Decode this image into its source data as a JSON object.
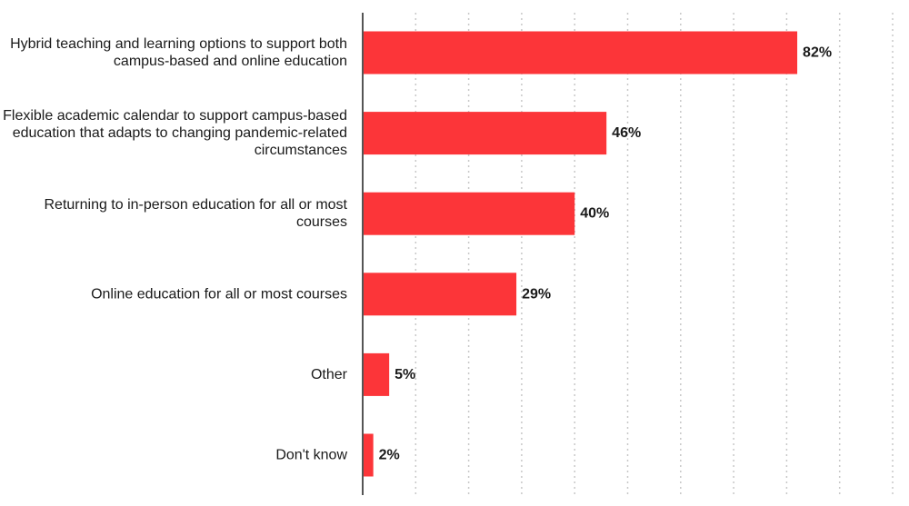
{
  "chart_data": {
    "type": "bar",
    "orientation": "horizontal",
    "categories": [
      "Hybrid teaching and learning options to support both\ncampus-based and online education",
      "Flexible academic calendar to support campus-based\neducation that adapts to changing pandemic-related\ncircumstances",
      "Returning to in-person education for all or most\ncourses",
      "Online education for all or most courses",
      "Other",
      "Don't know"
    ],
    "values": [
      82,
      46,
      40,
      29,
      5,
      2
    ],
    "value_labels": [
      "82%",
      "46%",
      "40%",
      "29%",
      "5%",
      "2%"
    ],
    "title": "",
    "xlabel": "",
    "ylabel": "",
    "xlim": [
      0,
      100
    ],
    "grid": true,
    "legend": "none",
    "colors": {
      "bar": "#fc3539",
      "text": "#1a1a1a",
      "grid": "#c8c8c8",
      "axis": "#555555"
    }
  }
}
